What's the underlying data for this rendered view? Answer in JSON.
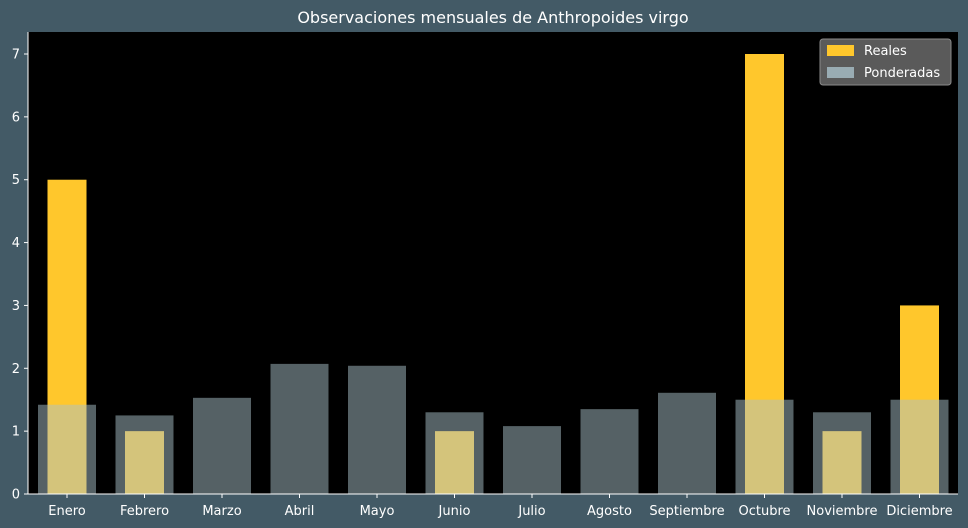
{
  "chart_data": {
    "type": "bar",
    "title": "Observaciones mensuales de Anthropoides virgo",
    "xlabel": "",
    "ylabel": "",
    "ylim": [
      0,
      7.35
    ],
    "yticks": [
      0,
      1,
      2,
      3,
      4,
      5,
      6,
      7
    ],
    "categories": [
      "Enero",
      "Febrero",
      "Marzo",
      "Abril",
      "Mayo",
      "Junio",
      "Julio",
      "Agosto",
      "Septiembre",
      "Octubre",
      "Noviembre",
      "Diciembre"
    ],
    "series": [
      {
        "name": "Reales",
        "color": "#ffc72c",
        "values": [
          5,
          1,
          0,
          0,
          0,
          1,
          0,
          0,
          0,
          7,
          1,
          3
        ]
      },
      {
        "name": "Ponderadas",
        "color": "#a9c1c9",
        "opacity": 0.5,
        "values": [
          1.42,
          1.25,
          1.53,
          2.07,
          2.04,
          1.3,
          1.08,
          1.35,
          1.61,
          1.5,
          1.3,
          1.5
        ]
      }
    ],
    "legend_position": "top-right",
    "grid": false,
    "colors": {
      "background": "#435a66",
      "plot_background": "#000000",
      "text": "#ffffff"
    }
  }
}
